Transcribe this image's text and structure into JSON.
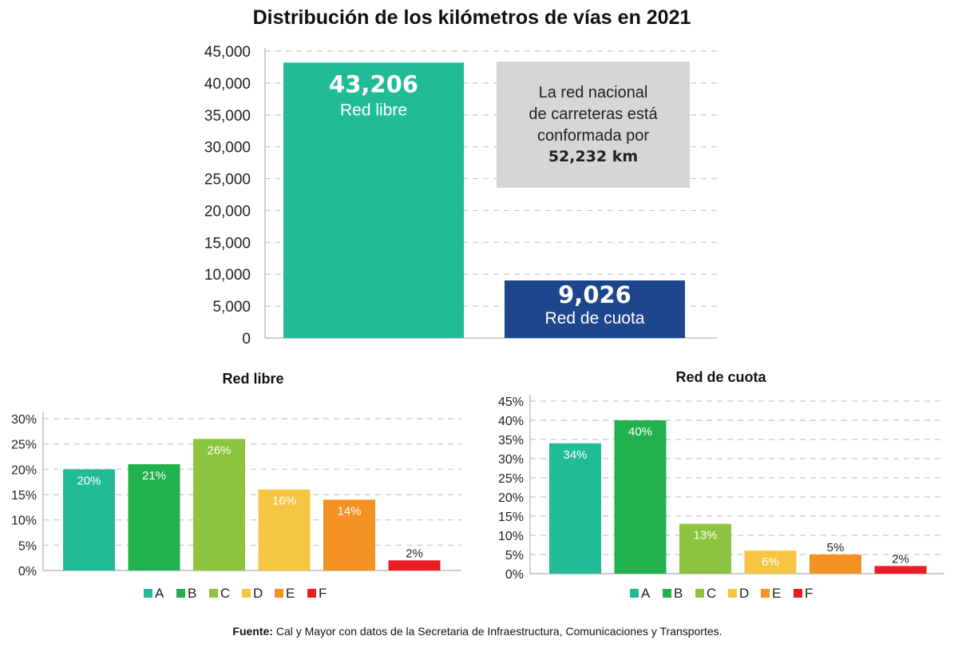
{
  "title": "Distribución de los kilómetros de vías en 2021",
  "colors": {
    "red_libre": "#22bb9a",
    "red_cuota": "#1c478c",
    "note_box": "#d5d6d6",
    "A": "#22bb9a",
    "B": "#22b14c",
    "C": "#8cc43f",
    "D": "#f5c542",
    "E": "#f39222",
    "F": "#ec1c24"
  },
  "note": {
    "lines": [
      "La red nacional",
      "de carreteras está",
      "conformada por"
    ],
    "total": "52,232 km"
  },
  "chart_data": [
    {
      "type": "bar",
      "title": "Distribución de los kilómetros de vías en 2021",
      "categories": [
        "Red libre",
        "Red de cuota"
      ],
      "values": [
        43206,
        9026
      ],
      "value_labels": [
        "43,206",
        "9,026"
      ],
      "ylim": [
        0,
        45000
      ],
      "yticks": [
        0,
        5000,
        10000,
        15000,
        20000,
        25000,
        30000,
        35000,
        40000,
        45000
      ],
      "ytick_labels": [
        "0",
        "5,000",
        "10,000",
        "15,000",
        "20,000",
        "25,000",
        "30,000",
        "35,000",
        "40,000",
        "45,000"
      ],
      "xlabel": "",
      "ylabel": "",
      "grid": true
    },
    {
      "type": "bar",
      "title": "Red libre",
      "categories": [
        "A",
        "B",
        "C",
        "D",
        "E",
        "F"
      ],
      "values": [
        20,
        21,
        26,
        16,
        14,
        2
      ],
      "value_labels": [
        "20%",
        "21%",
        "26%",
        "16%",
        "14%",
        "2%"
      ],
      "ylim": [
        0,
        30
      ],
      "yticks": [
        0,
        5,
        10,
        15,
        20,
        25,
        30
      ],
      "ytick_labels": [
        "0%",
        "5%",
        "10%",
        "15%",
        "20%",
        "25%",
        "30%"
      ],
      "legend": [
        "A",
        "B",
        "C",
        "D",
        "E",
        "F"
      ],
      "grid": true
    },
    {
      "type": "bar",
      "title": "Red de cuota",
      "categories": [
        "A",
        "B",
        "C",
        "D",
        "E",
        "F"
      ],
      "values": [
        34,
        40,
        13,
        6,
        5,
        2
      ],
      "value_labels": [
        "34%",
        "40%",
        "13%",
        "6%",
        "5%",
        "2%"
      ],
      "ylim": [
        0,
        45
      ],
      "yticks": [
        0,
        5,
        10,
        15,
        20,
        25,
        30,
        35,
        40,
        45
      ],
      "ytick_labels": [
        "0%",
        "5%",
        "10%",
        "15%",
        "20%",
        "25%",
        "30%",
        "35%",
        "40%",
        "45%"
      ],
      "legend": [
        "A",
        "B",
        "C",
        "D",
        "E",
        "F"
      ],
      "grid": true
    }
  ],
  "source": {
    "label": "Fuente:",
    "text": " Cal y Mayor con datos de la Secretaria de Infraestructura, Comunicaciones y Transportes."
  }
}
